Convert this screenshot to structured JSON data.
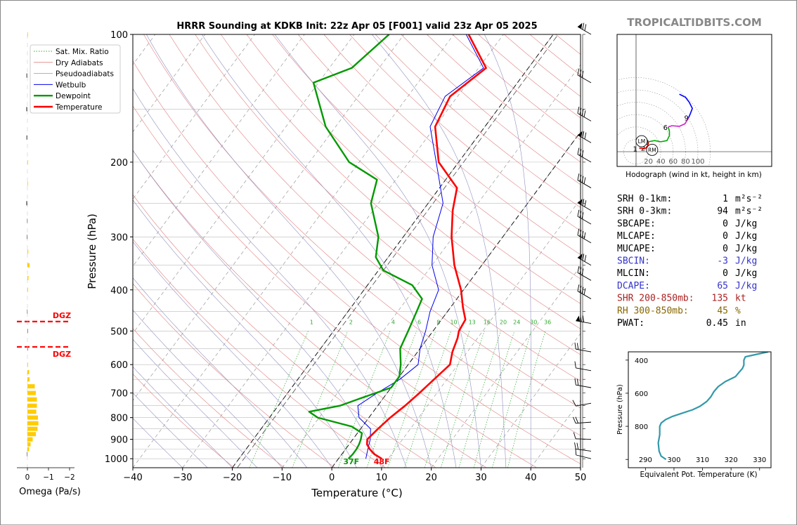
{
  "title": "HRRR Sounding at KDKB Init: 22z Apr 05 [F001] valid 23z Apr 05 2025",
  "site": "TROPICALTIDBITS.COM",
  "colors": {
    "temperature": "#ff0000",
    "dewpoint": "#009900",
    "wetbulb": "#0000ee",
    "dry_adiabat": "#e08080",
    "pseudoadiabat": "#9090c0",
    "mixing_ratio": "#33aa33",
    "hodo_0_3": "#00aa00",
    "hodo_3_6": "#00aa00",
    "hodo_6_9": "#cc22cc",
    "hodo_9_12": "#0000ff",
    "theta_e": "#3399aa",
    "omega": "#ffcc00"
  },
  "legend": [
    {
      "label": "Sat. Mix. Ratio",
      "style": "dotted-green"
    },
    {
      "label": "Dry Adiabats",
      "style": "thin-red"
    },
    {
      "label": "Pseudoadiabats",
      "style": "thin-gray"
    },
    {
      "label": "Wetbulb",
      "style": "thin-blue"
    },
    {
      "label": "Dewpoint",
      "style": "thick-green"
    },
    {
      "label": "Temperature",
      "style": "thick-red"
    }
  ],
  "chart_data": [
    {
      "type": "line",
      "name": "skew-t",
      "xlabel": "Temperature (°C)",
      "ylabel": "Pressure (hPa)",
      "xlim": [
        -40,
        50
      ],
      "ylim": [
        1050,
        100
      ],
      "y_scale": "log",
      "x_ticks": [
        "−40",
        "−30",
        "−20",
        "−10",
        "0",
        "10",
        "20",
        "30",
        "40",
        "50"
      ],
      "y_ticks": [
        100,
        200,
        300,
        400,
        500,
        600,
        700,
        800,
        900,
        1000
      ],
      "mixing_ratio_labels": [
        "1",
        "2",
        "4",
        "6",
        "8",
        "10",
        "13",
        "16",
        "20",
        "24",
        "30",
        "36"
      ],
      "surface_labels": {
        "dewpoint": "37F",
        "temperature": "48F"
      },
      "dgz_label": "DGZ",
      "dgz_levels": [
        475,
        545
      ],
      "series": [
        {
          "name": "Temperature",
          "points": [
            [
              1000,
              8.7
            ],
            [
              975,
              6.5
            ],
            [
              950,
              4.9
            ],
            [
              925,
              3.6
            ],
            [
              900,
              2.9
            ],
            [
              850,
              3.5
            ],
            [
              800,
              4.3
            ],
            [
              750,
              5.5
            ],
            [
              700,
              6.5
            ],
            [
              650,
              7.4
            ],
            [
              600,
              8.4
            ],
            [
              560,
              7.0
            ],
            [
              520,
              6.0
            ],
            [
              500,
              5.2
            ],
            [
              470,
              4.8
            ],
            [
              440,
              2.5
            ],
            [
              400,
              -0.5
            ],
            [
              350,
              -5.5
            ],
            [
              300,
              -10.3
            ],
            [
              260,
              -14.0
            ],
            [
              230,
              -16.5
            ],
            [
              200,
              -24.0
            ],
            [
              165,
              -30.0
            ],
            [
              140,
              -31.5
            ],
            [
              120,
              -28.5
            ],
            [
              100,
              -37.0
            ]
          ]
        },
        {
          "name": "Dewpoint",
          "points": [
            [
              1000,
              2.0
            ],
            [
              975,
              2.2
            ],
            [
              950,
              2.2
            ],
            [
              925,
              2.0
            ],
            [
              900,
              1.6
            ],
            [
              870,
              0.9
            ],
            [
              840,
              -2.1
            ],
            [
              800,
              -10.3
            ],
            [
              775,
              -12.9
            ],
            [
              750,
              -7.6
            ],
            [
              720,
              -4.5
            ],
            [
              680,
              0.0
            ],
            [
              640,
              0.0
            ],
            [
              600,
              -1.5
            ],
            [
              550,
              -4.0
            ],
            [
              500,
              -5.0
            ],
            [
              450,
              -6.2
            ],
            [
              420,
              -7.0
            ],
            [
              390,
              -11.0
            ],
            [
              360,
              -19.0
            ],
            [
              335,
              -22.5
            ],
            [
              300,
              -25.0
            ],
            [
              250,
              -31.5
            ],
            [
              220,
              -33.8
            ],
            [
              200,
              -42.0
            ],
            [
              165,
              -52.0
            ],
            [
              130,
              -61.0
            ],
            [
              120,
              -55.5
            ],
            [
              100,
              -53.0
            ]
          ]
        },
        {
          "name": "Wetbulb",
          "points": [
            [
              1000,
              5.5
            ],
            [
              950,
              4.5
            ],
            [
              900,
              3.5
            ],
            [
              850,
              2.0
            ],
            [
              800,
              -2.0
            ],
            [
              750,
              -4.0
            ],
            [
              700,
              -2.0
            ],
            [
              650,
              0.5
            ],
            [
              600,
              2.0
            ],
            [
              550,
              0.0
            ],
            [
              500,
              -1.5
            ],
            [
              450,
              -3.5
            ],
            [
              400,
              -5.0
            ],
            [
              350,
              -10.0
            ],
            [
              300,
              -14.0
            ],
            [
              250,
              -17.0
            ],
            [
              200,
              -24.5
            ],
            [
              165,
              -31.0
            ],
            [
              140,
              -32.5
            ],
            [
              120,
              -29.0
            ],
            [
              100,
              -37.5
            ]
          ]
        }
      ],
      "wind_levels": [
        100,
        130,
        160,
        180,
        200,
        230,
        260,
        280,
        310,
        350,
        380,
        420,
        480,
        560,
        620,
        680,
        740,
        820,
        900,
        960,
        1000
      ]
    },
    {
      "type": "line",
      "name": "hodograph",
      "xlabel": "Hodograph (wind in kt, height in km)",
      "x_ticks": [
        "20",
        "40",
        "60",
        "80",
        "100"
      ],
      "segments": [
        {
          "name": "0-3 km",
          "points": [
            [
              5,
              6
            ],
            [
              14,
              6
            ],
            [
              19,
              10
            ],
            [
              20,
              16
            ]
          ]
        },
        {
          "name": "3-6 km",
          "points": [
            [
              20,
              16
            ],
            [
              30,
              18
            ],
            [
              40,
              16
            ],
            [
              50,
              18
            ],
            [
              54,
              26
            ],
            [
              54,
              33
            ],
            [
              52,
              40
            ]
          ]
        },
        {
          "name": "6-9 km",
          "points": [
            [
              52,
              40
            ],
            [
              58,
              42
            ],
            [
              70,
              41
            ],
            [
              79,
              45
            ],
            [
              85,
              55
            ]
          ]
        },
        {
          "name": "9-12 km",
          "points": [
            [
              85,
              55
            ],
            [
              88,
              62
            ],
            [
              91,
              70
            ],
            [
              86,
              80
            ],
            [
              80,
              88
            ],
            [
              72,
              92
            ],
            [
              70,
              93
            ]
          ]
        }
      ],
      "height_labels": [
        {
          "text": "1",
          "x": 3,
          "y": 5
        },
        {
          "text": "2",
          "x": 16,
          "y": 6
        },
        {
          "text": "3",
          "x": 22,
          "y": 16
        },
        {
          "text": "6",
          "x": 52,
          "y": 40
        },
        {
          "text": "9",
          "x": 86,
          "y": 55
        }
      ],
      "markers": [
        {
          "text": "LM",
          "x": 9,
          "y": 17
        },
        {
          "text": "RM",
          "x": 26,
          "y": 3
        }
      ]
    },
    {
      "type": "line",
      "name": "theta-e",
      "xlabel": "Equivalent Pot. Temperature (K)",
      "ylabel": "Pressure (hPa)",
      "xlim": [
        284,
        334
      ],
      "ylim": [
        1050,
        350
      ],
      "x_ticks": [
        "290",
        "300",
        "310",
        "320",
        "330"
      ],
      "y_ticks": [
        "400",
        "600",
        "800"
      ],
      "points": [
        [
          1000,
          297.2
        ],
        [
          980,
          295.5
        ],
        [
          950,
          294.8
        ],
        [
          900,
          294.5
        ],
        [
          850,
          295.0
        ],
        [
          800,
          295.0
        ],
        [
          780,
          295.5
        ],
        [
          760,
          297.0
        ],
        [
          740,
          299.5
        ],
        [
          720,
          303.0
        ],
        [
          700,
          306.5
        ],
        [
          680,
          309.0
        ],
        [
          650,
          311.5
        ],
        [
          620,
          313.0
        ],
        [
          590,
          314.0
        ],
        [
          560,
          315.5
        ],
        [
          530,
          318.0
        ],
        [
          500,
          321.5
        ],
        [
          470,
          323.0
        ],
        [
          450,
          324.0
        ],
        [
          430,
          324.5
        ],
        [
          400,
          324.5
        ],
        [
          380,
          325.0
        ],
        [
          365,
          329.0
        ],
        [
          350,
          333.0
        ]
      ]
    },
    {
      "type": "bar",
      "name": "omega",
      "xlabel": "Omega (Pa/s)",
      "x_ticks": [
        "0",
        "−1",
        "−2"
      ],
      "levels": [
        975,
        950,
        925,
        900,
        875,
        850,
        825,
        800,
        775,
        750,
        725,
        700,
        675,
        650,
        625,
        600,
        550,
        500,
        450,
        400,
        375,
        350,
        325,
        300,
        275,
        250,
        225,
        200,
        175,
        150,
        125,
        100
      ],
      "values": [
        0.03,
        -0.08,
        -0.15,
        -0.25,
        -0.4,
        -0.48,
        -0.52,
        -0.5,
        -0.42,
        -0.45,
        -0.45,
        -0.4,
        -0.35,
        -0.1,
        -0.08,
        -0.02,
        0.0,
        0.0,
        0.02,
        -0.03,
        -0.05,
        -0.1,
        -0.04,
        0.03,
        0.02,
        0.06,
        -0.01,
        -0.02,
        0.05,
        0.06,
        0.05,
        -0.02
      ]
    }
  ],
  "params": [
    {
      "label": "SRH 0-1km:",
      "value": "1",
      "unit": "m²s⁻²",
      "color": "#000000"
    },
    {
      "label": "SRH 0-3km:",
      "value": "94",
      "unit": "m²s⁻²",
      "color": "#000000"
    },
    {
      "label": "SBCAPE:",
      "value": "0",
      "unit": "J/kg",
      "color": "#000000"
    },
    {
      "label": "MLCAPE:",
      "value": "0",
      "unit": "J/kg",
      "color": "#000000"
    },
    {
      "label": "MUCAPE:",
      "value": "0",
      "unit": "J/kg",
      "color": "#000000"
    },
    {
      "label": "SBCIN:",
      "value": "-3",
      "unit": "J/kg",
      "color": "#3333cc"
    },
    {
      "label": "MLCIN:",
      "value": "0",
      "unit": "J/kg",
      "color": "#000000"
    },
    {
      "label": "DCAPE:",
      "value": "65",
      "unit": "J/kg",
      "color": "#3333cc"
    },
    {
      "label": "SHR 200-850mb:",
      "value": "135",
      "unit": "kt",
      "color": "#aa2222"
    },
    {
      "label": "RH 300-850mb:",
      "value": "45",
      "unit": "%",
      "color": "#886600"
    },
    {
      "label": "PWAT:",
      "value": "0.45",
      "unit": "in",
      "color": "#000000"
    }
  ]
}
